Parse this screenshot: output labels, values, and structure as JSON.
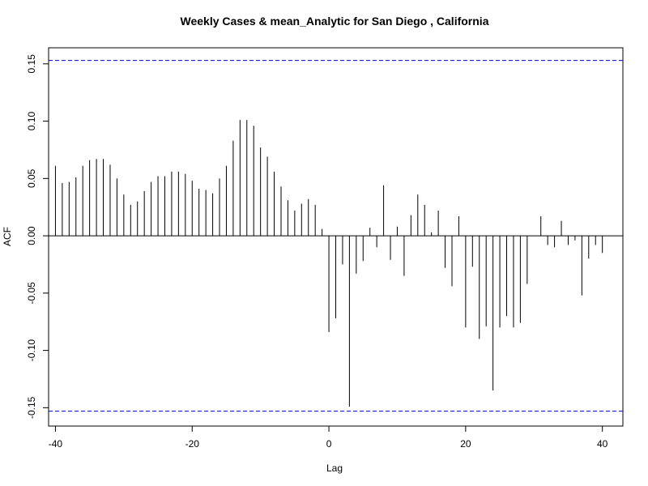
{
  "chart_data": {
    "type": "bar",
    "title": "Weekly Cases & mean_Analytic for San Diego , California",
    "xlabel": "Lag",
    "ylabel": "ACF",
    "xlim": [
      -41,
      43
    ],
    "ylim": [
      -0.166,
      0.164
    ],
    "x_ticks": [
      -40,
      -20,
      0,
      20,
      40
    ],
    "x_tick_labels": [
      "-40",
      "-20",
      "0",
      "20",
      "40"
    ],
    "y_ticks": [
      -0.15,
      -0.1,
      -0.05,
      0.0,
      0.05,
      0.1,
      0.15
    ],
    "y_tick_labels": [
      "-0.15",
      "-0.10",
      "-0.05",
      "0.00",
      "0.05",
      "0.10",
      "0.15"
    ],
    "confidence_bound": 0.153,
    "bar_color": "#000000",
    "bound_color": "#0000cc",
    "x": [
      -40,
      -39,
      -38,
      -37,
      -36,
      -35,
      -34,
      -33,
      -32,
      -31,
      -30,
      -29,
      -28,
      -27,
      -26,
      -25,
      -24,
      -23,
      -22,
      -21,
      -20,
      -19,
      -18,
      -17,
      -16,
      -15,
      -14,
      -13,
      -12,
      -11,
      -10,
      -9,
      -8,
      -7,
      -6,
      -5,
      -4,
      -3,
      -2,
      -1,
      0,
      1,
      2,
      3,
      4,
      5,
      6,
      7,
      8,
      9,
      10,
      11,
      12,
      13,
      14,
      15,
      16,
      17,
      18,
      19,
      20,
      21,
      22,
      23,
      24,
      25,
      26,
      27,
      28,
      29,
      30,
      31,
      32,
      33,
      34,
      35,
      36,
      37,
      38,
      39,
      40
    ],
    "values": [
      0.061,
      0.046,
      0.047,
      0.051,
      0.061,
      0.066,
      0.067,
      0.067,
      0.062,
      0.05,
      0.036,
      0.027,
      0.03,
      0.039,
      0.047,
      0.052,
      0.052,
      0.056,
      0.056,
      0.054,
      0.048,
      0.041,
      0.04,
      0.037,
      0.05,
      0.061,
      0.083,
      0.101,
      0.101,
      0.096,
      0.077,
      0.069,
      0.056,
      0.043,
      0.031,
      0.022,
      0.028,
      0.032,
      0.027,
      0.006,
      -0.084,
      -0.072,
      -0.025,
      -0.149,
      -0.033,
      -0.022,
      0.007,
      -0.01,
      0.044,
      -0.021,
      0.008,
      -0.035,
      0.018,
      0.036,
      0.027,
      0.003,
      0.022,
      -0.028,
      -0.044,
      0.017,
      -0.08,
      -0.027,
      -0.09,
      -0.079,
      -0.135,
      -0.08,
      -0.07,
      -0.08,
      -0.076,
      -0.042,
      0.0,
      0.017,
      -0.008,
      -0.01,
      0.013,
      -0.008,
      -0.004,
      -0.052,
      -0.02,
      -0.008,
      -0.015
    ]
  }
}
